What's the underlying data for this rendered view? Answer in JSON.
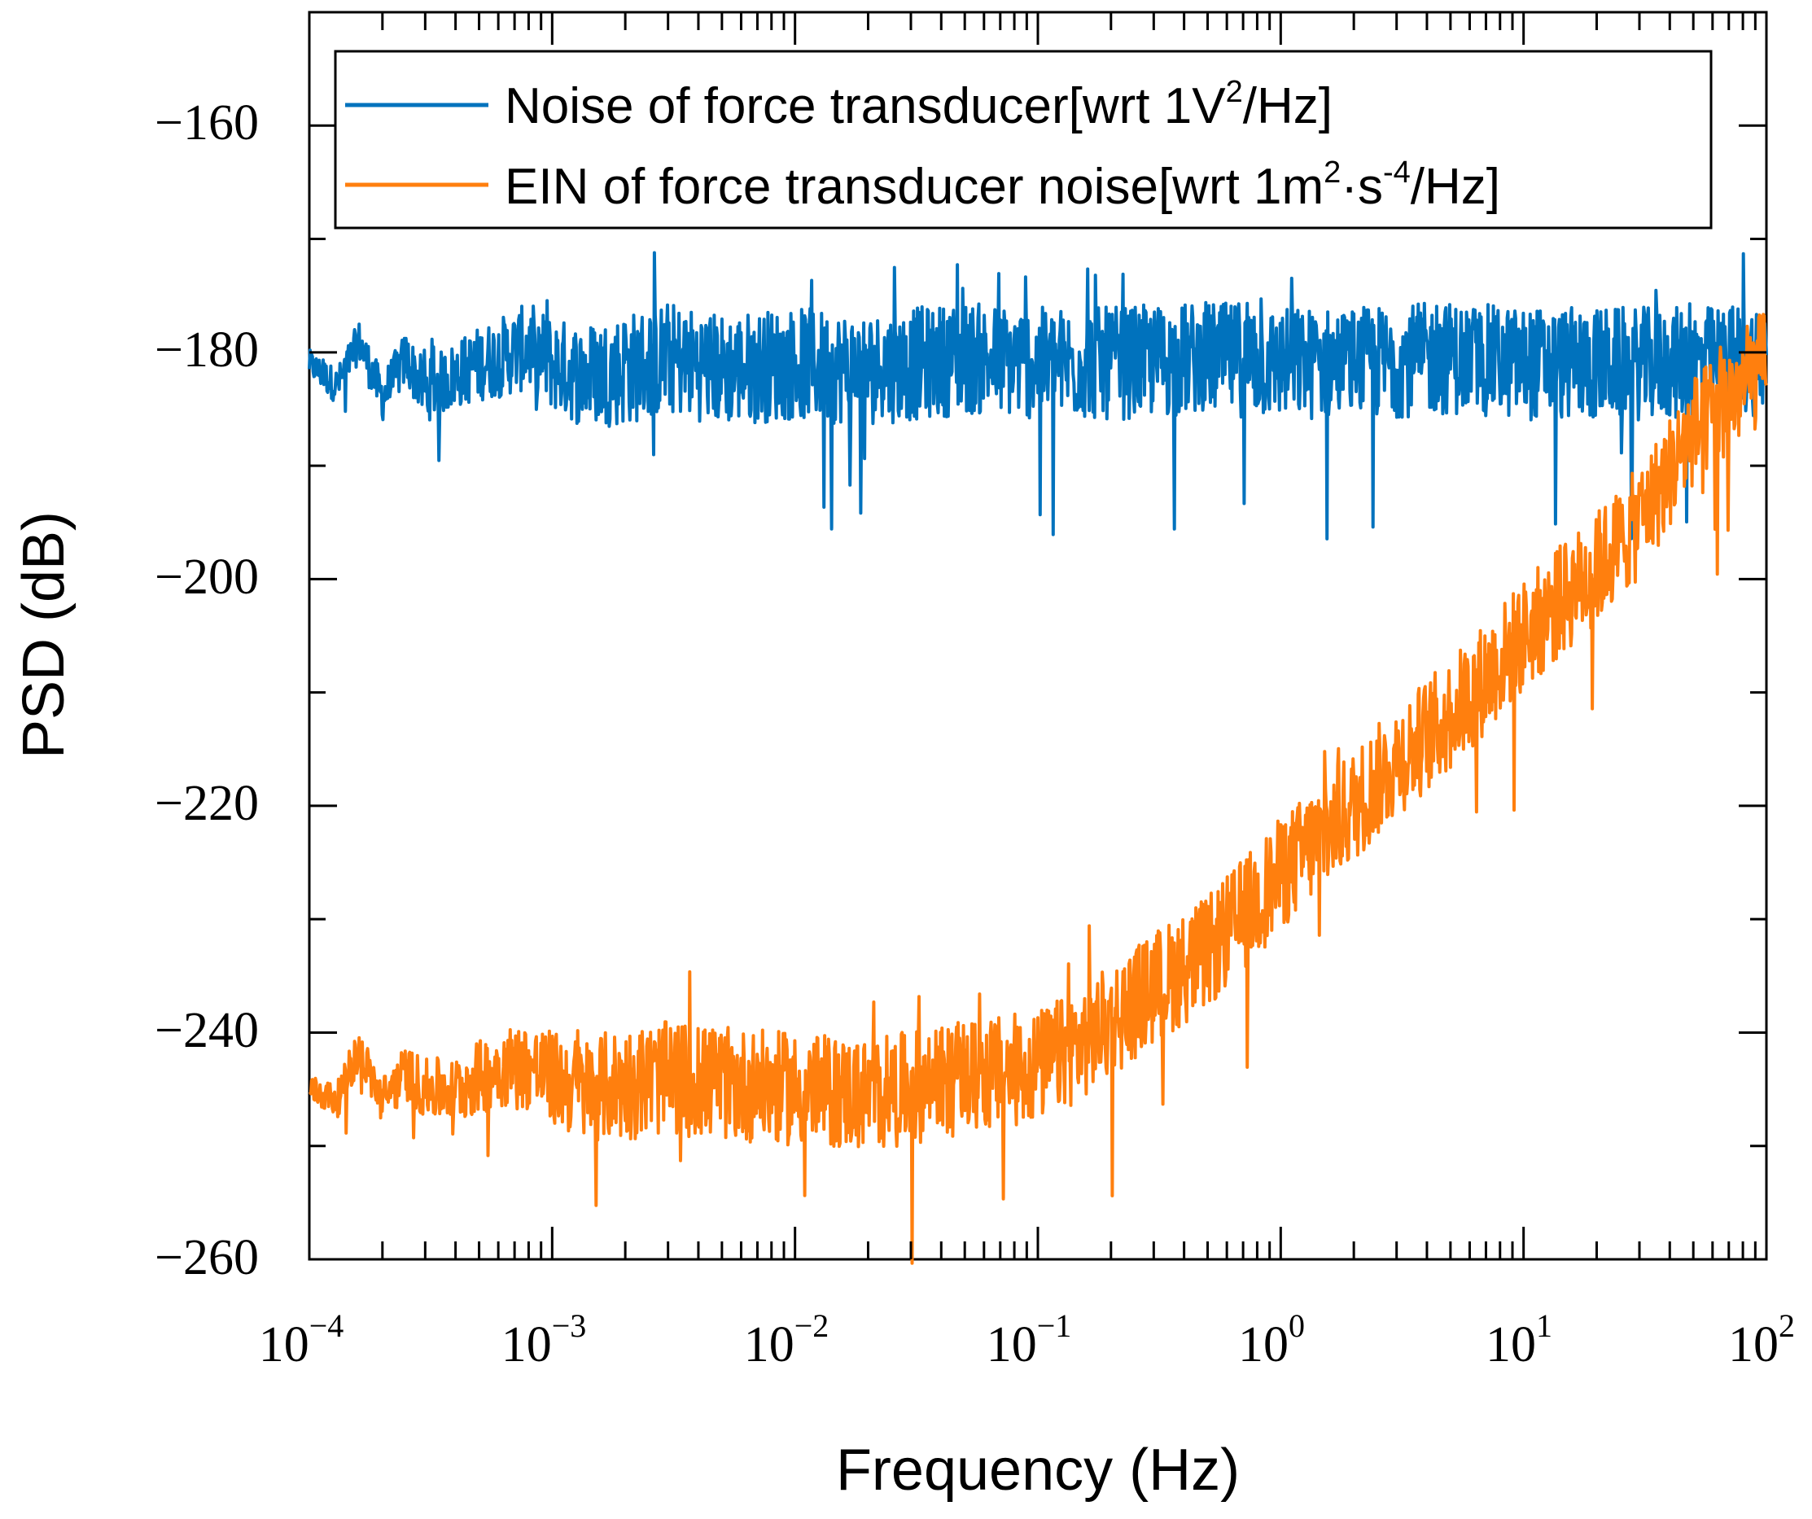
{
  "chart_data": {
    "type": "line",
    "xscale": "log",
    "xlabel": "Frequency (Hz)",
    "ylabel": "PSD (dB)",
    "xlim": [
      0.0001,
      100
    ],
    "ylim": [
      -260,
      -150
    ],
    "x_ticks": [
      {
        "base": "10",
        "exp": "−4"
      },
      {
        "base": "10",
        "exp": "−3"
      },
      {
        "base": "10",
        "exp": "−2"
      },
      {
        "base": "10",
        "exp": "−1"
      },
      {
        "base": "10",
        "exp": "0"
      },
      {
        "base": "10",
        "exp": "1"
      },
      {
        "base": "10",
        "exp": "2"
      }
    ],
    "y_ticks": [
      "−160",
      "−180",
      "−200",
      "−220",
      "−240",
      "−260"
    ],
    "y_tick_values": [
      -160,
      -180,
      -200,
      -220,
      -240,
      -260
    ],
    "legend_position": "top",
    "series": [
      {
        "name": "Noise of force transducer[wrt 1V2/Hz]",
        "legend_main": "Noise of force transducer[wrt 1V",
        "legend_sup": "2",
        "legend_tail": "/Hz]",
        "color": "#0072bd",
        "x": [
          0.0001,
          0.00013,
          0.00016,
          0.0002,
          0.00025,
          0.0003,
          0.0004,
          0.0005,
          0.0006,
          0.0008,
          0.001,
          0.0013,
          0.002,
          0.003,
          0.005,
          0.01,
          0.02,
          0.05,
          0.1,
          0.2,
          0.5,
          1,
          2,
          5,
          10,
          20,
          50,
          100
        ],
        "y": [
          -181,
          -183,
          -179,
          -184,
          -180.5,
          -183.5,
          -182,
          -181,
          -180.5,
          -179.5,
          -181,
          -182,
          -181.5,
          -180.5,
          -181.5,
          -181,
          -181.5,
          -180.5,
          -181,
          -181,
          -180.5,
          -181,
          -181,
          -180.5,
          -181,
          -181,
          -181,
          -180.5
        ],
        "noise": 5
      },
      {
        "name": "EIN of force transducer noise[wrt 1m2·s-4/Hz]",
        "legend_main": "EIN of force transducer noise[wrt 1m",
        "legend_sup": "2",
        "legend_mid": "·s",
        "legend_sup2": "-4",
        "legend_tail": "/Hz]",
        "color": "#ff7f0e",
        "x": [
          0.0001,
          0.00013,
          0.00016,
          0.0002,
          0.00025,
          0.0003,
          0.0004,
          0.0005,
          0.0006,
          0.0008,
          0.001,
          0.0013,
          0.002,
          0.003,
          0.005,
          0.01,
          0.02,
          0.05,
          0.1,
          0.15,
          0.2,
          0.3,
          0.5,
          1,
          2,
          3,
          5,
          10,
          20,
          30,
          50,
          100
        ],
        "y": [
          -245,
          -246,
          -241.5,
          -246,
          -243.5,
          -245,
          -245,
          -244,
          -243,
          -243,
          -244,
          -245,
          -244.5,
          -244,
          -244.5,
          -245,
          -245.5,
          -244,
          -243,
          -241,
          -239,
          -236,
          -233,
          -226,
          -220,
          -216,
          -212,
          -205,
          -199,
          -195,
          -187,
          -181
        ],
        "noise": 5
      }
    ]
  }
}
